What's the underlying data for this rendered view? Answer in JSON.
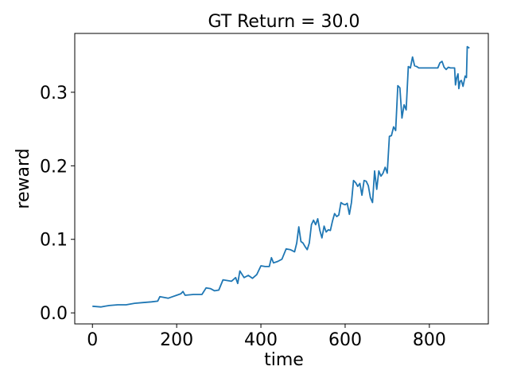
{
  "chart_data": {
    "type": "line",
    "title": "GT Return = 30.0",
    "xlabel": "time",
    "ylabel": "reward",
    "xlim": [
      -42,
      940
    ],
    "ylim": [
      -0.015,
      0.38
    ],
    "xticks": [
      0,
      200,
      400,
      600,
      800
    ],
    "yticks": [
      0.0,
      0.1,
      0.2,
      0.3
    ],
    "ytick_labels": [
      "0.0",
      "0.1",
      "0.2",
      "0.3"
    ],
    "grid": false,
    "series": [
      {
        "color": "#1f77b4",
        "x": [
          0,
          20,
          30,
          40,
          60,
          80,
          100,
          120,
          140,
          155,
          160,
          170,
          180,
          190,
          200,
          210,
          215,
          220,
          240,
          260,
          270,
          280,
          290,
          300,
          310,
          320,
          330,
          340,
          345,
          350,
          360,
          370,
          380,
          390,
          400,
          410,
          420,
          425,
          430,
          440,
          450,
          460,
          470,
          480,
          485,
          490,
          495,
          500,
          505,
          510,
          515,
          520,
          525,
          530,
          535,
          540,
          545,
          550,
          555,
          560,
          565,
          570,
          575,
          580,
          585,
          590,
          595,
          600,
          605,
          610,
          615,
          620,
          625,
          630,
          635,
          640,
          645,
          650,
          655,
          660,
          665,
          670,
          675,
          680,
          685,
          690,
          695,
          700,
          705,
          710,
          715,
          720,
          725,
          730,
          735,
          740,
          745,
          750,
          755,
          760,
          765,
          770,
          775,
          780,
          790,
          800,
          810,
          820,
          825,
          830,
          835,
          840,
          845,
          850,
          855,
          860,
          862,
          865,
          868,
          870,
          873,
          876,
          880,
          885,
          888,
          890,
          895
        ],
        "y": [
          0.009,
          0.008,
          0.009,
          0.01,
          0.011,
          0.011,
          0.013,
          0.014,
          0.015,
          0.016,
          0.022,
          0.021,
          0.02,
          0.022,
          0.024,
          0.026,
          0.029,
          0.024,
          0.025,
          0.025,
          0.034,
          0.033,
          0.03,
          0.031,
          0.045,
          0.044,
          0.043,
          0.048,
          0.04,
          0.057,
          0.048,
          0.051,
          0.047,
          0.052,
          0.064,
          0.063,
          0.063,
          0.075,
          0.068,
          0.07,
          0.073,
          0.087,
          0.086,
          0.083,
          0.095,
          0.117,
          0.097,
          0.095,
          0.09,
          0.086,
          0.095,
          0.12,
          0.126,
          0.12,
          0.128,
          0.112,
          0.102,
          0.118,
          0.11,
          0.113,
          0.112,
          0.125,
          0.135,
          0.131,
          0.133,
          0.15,
          0.148,
          0.147,
          0.149,
          0.134,
          0.15,
          0.18,
          0.177,
          0.172,
          0.176,
          0.16,
          0.18,
          0.179,
          0.173,
          0.157,
          0.15,
          0.193,
          0.168,
          0.193,
          0.186,
          0.19,
          0.198,
          0.19,
          0.24,
          0.241,
          0.253,
          0.248,
          0.309,
          0.306,
          0.265,
          0.283,
          0.276,
          0.335,
          0.333,
          0.348,
          0.336,
          0.335,
          0.333,
          0.333,
          0.333,
          0.333,
          0.333,
          0.333,
          0.34,
          0.342,
          0.334,
          0.331,
          0.334,
          0.333,
          0.333,
          0.333,
          0.31,
          0.32,
          0.325,
          0.305,
          0.315,
          0.316,
          0.308,
          0.322,
          0.32,
          0.362,
          0.36
        ]
      }
    ]
  }
}
